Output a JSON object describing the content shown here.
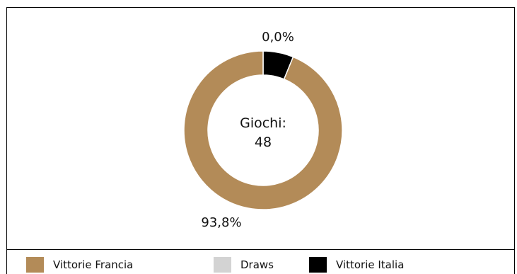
{
  "chart_data": {
    "type": "pie",
    "center_label_line1": "Giochi:",
    "center_label_line2": "48",
    "slices": [
      {
        "name": "Vittorie Italia",
        "value": 6.2,
        "color": "#000000"
      },
      {
        "name": "Draws",
        "value": 0.0,
        "label": "0,0%",
        "color": "#d3d3d3"
      },
      {
        "name": "Vittorie Francia",
        "value": 93.8,
        "label": "93,8%",
        "color": "#b38b58"
      }
    ],
    "legend": [
      {
        "name": "Vittorie Francia",
        "color": "#b38b58"
      },
      {
        "name": "Draws",
        "color": "#d3d3d3"
      },
      {
        "name": "Vittorie Italia",
        "color": "#000000"
      }
    ],
    "legend_position": "bottom"
  }
}
